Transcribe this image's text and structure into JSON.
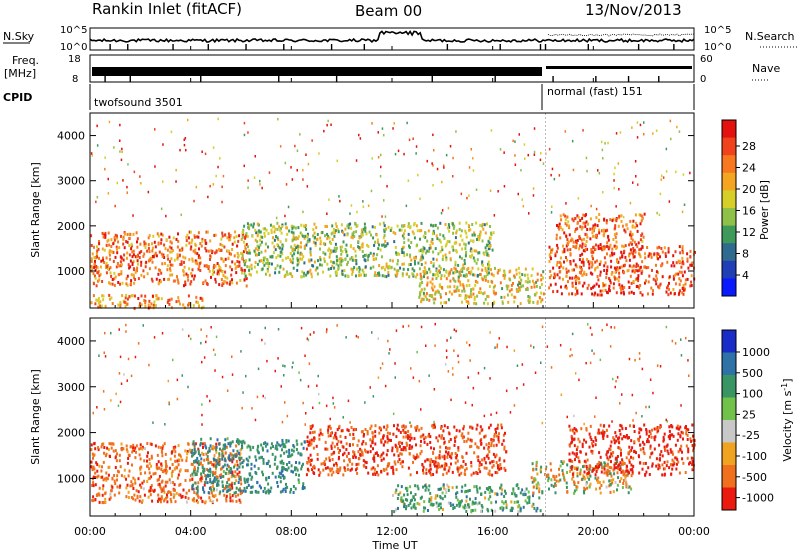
{
  "header": {
    "station": "Rankin Inlet (fitACF)",
    "beam": "Beam 00",
    "date": "13/Nov/2013"
  },
  "strip_labels": {
    "nsky": "N.Sky",
    "nsky_ticks": [
      "10^5",
      "10^0"
    ],
    "nsearch": "N.Search",
    "nsearch_ticks": [
      "10^5",
      "10^0"
    ],
    "freq": "Freq.",
    "freq_unit": "[MHz]",
    "freq_ticks": [
      "18",
      "8"
    ],
    "nave": "Nave",
    "nave_ticks": [
      "60",
      "0"
    ],
    "cpid": "CPID",
    "cpid_modes": [
      "twofsound 3501",
      "normal (fast) 151"
    ]
  },
  "panels": {
    "ylabel": "Slant Range [km]",
    "yticks": [
      "4000",
      "3000",
      "2000",
      "1000"
    ],
    "xticks": [
      "00:00",
      "04:00",
      "08:00",
      "12:00",
      "16:00",
      "20:00",
      "00:00"
    ],
    "xlabel": "Time UT"
  },
  "colorbars": {
    "power": {
      "label": "Power [dB]",
      "ticks": [
        "28",
        "24",
        "20",
        "16",
        "12",
        "8",
        "4"
      ],
      "colors": [
        "#e4120f",
        "#f0421c",
        "#f7781f",
        "#f4a623",
        "#d6cf2a",
        "#8fc04a",
        "#3f9a5a",
        "#2f6b8f",
        "#1e3fb6",
        "#0a1aff"
      ]
    },
    "velocity": {
      "label": "Velocity [m s",
      "label_sup": "-1",
      "label_end": "]",
      "ticks": [
        "1000",
        "500",
        "100",
        "25",
        "-25",
        "-100",
        "-500",
        "-1000"
      ],
      "colors": [
        "#1a2cc7",
        "#2f72a8",
        "#3a9565",
        "#70c24a",
        "#c8c8c8",
        "#f0a221",
        "#f0701d",
        "#ea1a0e"
      ]
    }
  },
  "chart_data": [
    {
      "type": "line",
      "title": "N.Sky / N.Search",
      "x_range_hours": [
        0,
        24
      ],
      "y_scale": "log",
      "ylim": [
        "10^0",
        "10^5"
      ]
    },
    {
      "type": "line",
      "title": "Freq. [MHz] / Nave",
      "x_range_hours": [
        0,
        24
      ],
      "ylim_freq": [
        8,
        18
      ],
      "ylim_nave": [
        0,
        60
      ]
    },
    {
      "type": "heatmap",
      "title": "Power [dB]",
      "xlabel": "Time UT",
      "ylabel": "Slant Range [km]",
      "x_range": [
        "00:00",
        "00:00"
      ],
      "ylim": [
        180,
        4500
      ],
      "color_range": [
        0,
        30
      ],
      "bands": [
        {
          "t0": 0.0,
          "t1": 6.2,
          "r0": 700,
          "r1": 1900,
          "level": 24
        },
        {
          "t0": 0.0,
          "t1": 4.5,
          "r0": 200,
          "r1": 500,
          "level": 22
        },
        {
          "t0": 6.0,
          "t1": 16.0,
          "r0": 900,
          "r1": 2100,
          "level": 14
        },
        {
          "t0": 13.0,
          "t1": 18.0,
          "r0": 300,
          "r1": 1100,
          "level": 18
        },
        {
          "t0": 18.2,
          "t1": 24.0,
          "r0": 500,
          "r1": 1600,
          "level": 26
        },
        {
          "t0": 18.5,
          "t1": 22.0,
          "r0": 1500,
          "r1": 2300,
          "level": 25
        }
      ]
    },
    {
      "type": "heatmap",
      "title": "Velocity [m s-1]",
      "xlabel": "Time UT",
      "ylabel": "Slant Range [km]",
      "x_range": [
        "00:00",
        "00:00"
      ],
      "ylim": [
        180,
        4500
      ],
      "color_range": [
        -1000,
        1000
      ],
      "bands": [
        {
          "t0": 0.0,
          "t1": 6.0,
          "r0": 500,
          "r1": 1800,
          "level": -200
        },
        {
          "t0": 4.0,
          "t1": 8.5,
          "r0": 700,
          "r1": 1900,
          "level": 250
        },
        {
          "t0": 8.5,
          "t1": 16.5,
          "r0": 1100,
          "r1": 2200,
          "level": -300
        },
        {
          "t0": 12.0,
          "t1": 18.0,
          "r0": 300,
          "r1": 900,
          "level": 150
        },
        {
          "t0": 17.5,
          "t1": 21.5,
          "r0": 700,
          "r1": 1400,
          "level": 0
        },
        {
          "t0": 19.0,
          "t1": 24.0,
          "r0": 1100,
          "r1": 2200,
          "level": -400
        }
      ]
    }
  ]
}
